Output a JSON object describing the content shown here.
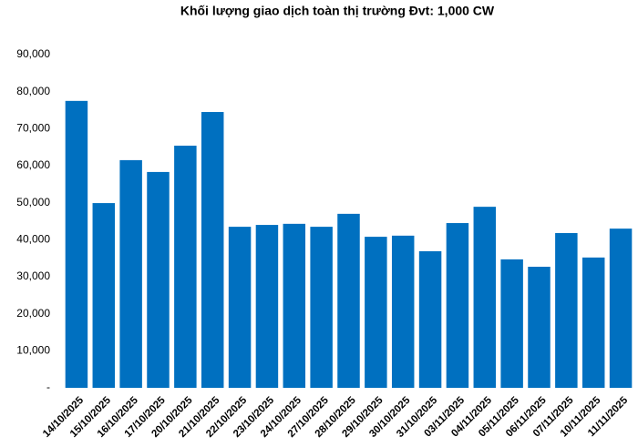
{
  "chart_data": {
    "type": "bar",
    "title": "Khối lượng giao dịch toàn thị trường Đvt: 1,000 CW",
    "categories": [
      "14/10/2025",
      "15/10/2025",
      "16/10/2025",
      "17/10/2025",
      "20/10/2025",
      "21/10/2025",
      "22/10/2025",
      "23/10/2025",
      "24/10/2025",
      "27/10/2025",
      "28/10/2025",
      "29/10/2025",
      "30/10/2025",
      "31/10/2025",
      "03/11/2025",
      "04/11/2025",
      "05/11/2025",
      "06/11/2025",
      "07/11/2025",
      "10/11/2025",
      "11/11/2025"
    ],
    "values": [
      77500,
      49900,
      61500,
      58300,
      65400,
      74500,
      43500,
      44000,
      44300,
      43500,
      47000,
      40800,
      41100,
      36900,
      44500,
      48900,
      34700,
      32700,
      41800,
      35200,
      43000
    ],
    "color": "#0070c0",
    "ylim": [
      0,
      90000
    ],
    "yticks": [
      {
        "value": 0,
        "label": "-"
      },
      {
        "value": 10000,
        "label": "10,000"
      },
      {
        "value": 20000,
        "label": "20,000"
      },
      {
        "value": 30000,
        "label": "30,000"
      },
      {
        "value": 40000,
        "label": "40,000"
      },
      {
        "value": 50000,
        "label": "50,000"
      },
      {
        "value": 60000,
        "label": "60,000"
      },
      {
        "value": 70000,
        "label": "70,000"
      },
      {
        "value": 80000,
        "label": "80,000"
      },
      {
        "value": 90000,
        "label": "90,000"
      }
    ],
    "grid": false
  }
}
